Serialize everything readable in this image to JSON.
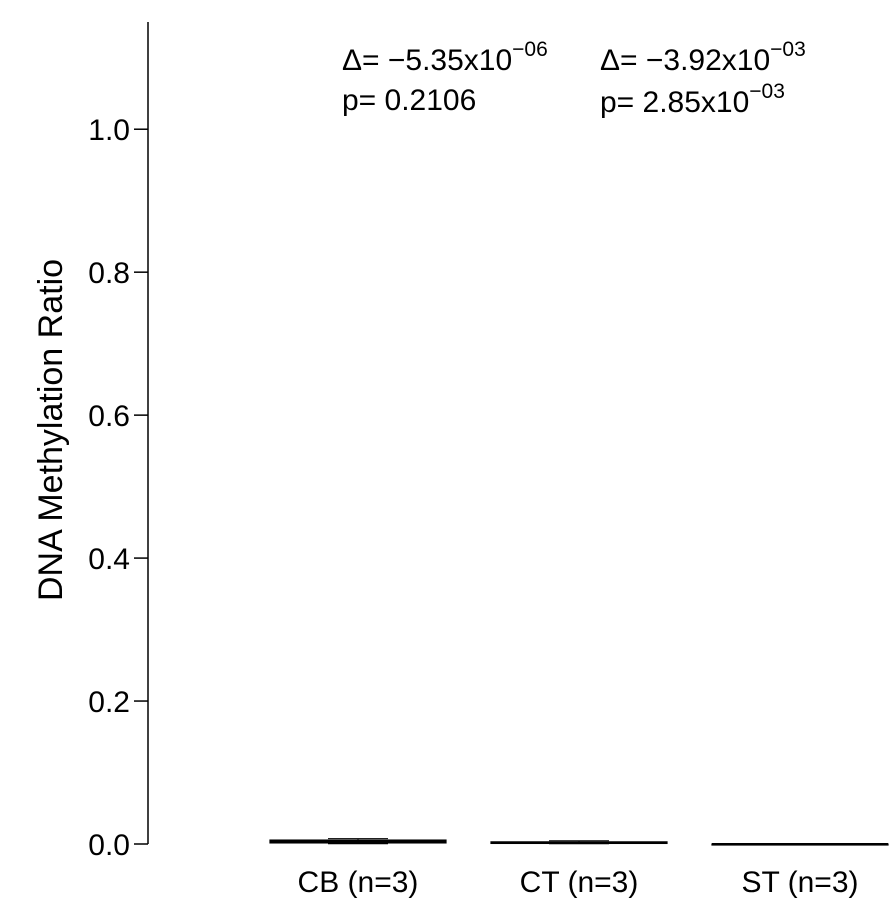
{
  "chart_data": {
    "type": "box",
    "ylabel": "DNA Methylation Ratio",
    "ylim": [
      0,
      1.15
    ],
    "y_ticks": [
      {
        "value": 0.0,
        "label": "0.0"
      },
      {
        "value": 0.2,
        "label": "0.2"
      },
      {
        "value": 0.4,
        "label": "0.4"
      },
      {
        "value": 0.6,
        "label": "0.6"
      },
      {
        "value": 0.8,
        "label": "0.8"
      },
      {
        "value": 1.0,
        "label": "1.0"
      }
    ],
    "categories": [
      "CB (n=3)",
      "CT (n=3)",
      "ST (n=3)"
    ],
    "boxes": [
      {
        "category": "CB (n=3)",
        "min": 0.0003,
        "q1": 0.0015,
        "median": 0.0035,
        "q3": 0.0055,
        "max": 0.0075,
        "color": "#c0392b"
      },
      {
        "category": "CT (n=3)",
        "min": 0.0003,
        "q1": 0.0008,
        "median": 0.0015,
        "q3": 0.003,
        "max": 0.0045,
        "color": "#48c9b0"
      },
      {
        "category": "ST (n=3)",
        "min": 0.0,
        "q1": 0.0,
        "median": 0.0,
        "q3": 0.0,
        "max": 0.0,
        "color": "#34495e"
      }
    ],
    "annotations": [
      {
        "delta_prefix": "Δ= −5.35x10",
        "delta_exp": "−06",
        "p_text": "p= 0.2106",
        "p_exp": ""
      },
      {
        "delta_prefix": "Δ= −3.92x10",
        "delta_exp": "−03",
        "p_text": "p= 2.85x10",
        "p_exp": "−03"
      }
    ]
  }
}
